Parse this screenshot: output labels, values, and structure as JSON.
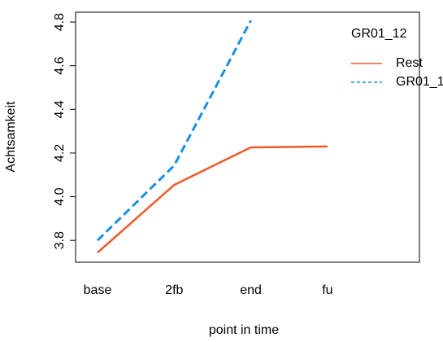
{
  "chart_data": {
    "type": "line",
    "x_label": "point in time",
    "y_label": "Achtsamkeit",
    "categories": [
      "base",
      "2fb",
      "end",
      "fu"
    ],
    "legend_title": "GR01_12",
    "series": [
      {
        "name": "Rest",
        "color": "#ee5a2a",
        "dash": "solid",
        "values": [
          3.744,
          4.054,
          4.226,
          4.23
        ]
      },
      {
        "name": "GR01_1",
        "color": "#1a8fe0",
        "dash": "dashed",
        "values": [
          3.8,
          4.143,
          4.807,
          null
        ]
      }
    ],
    "ylim": [
      3.7,
      4.845
    ],
    "yticks": [
      3.8,
      {
        "value": 4,
        "label": "4.0"
      },
      4.2,
      4.4,
      4.6,
      4.8
    ],
    "legend": "top-right"
  }
}
